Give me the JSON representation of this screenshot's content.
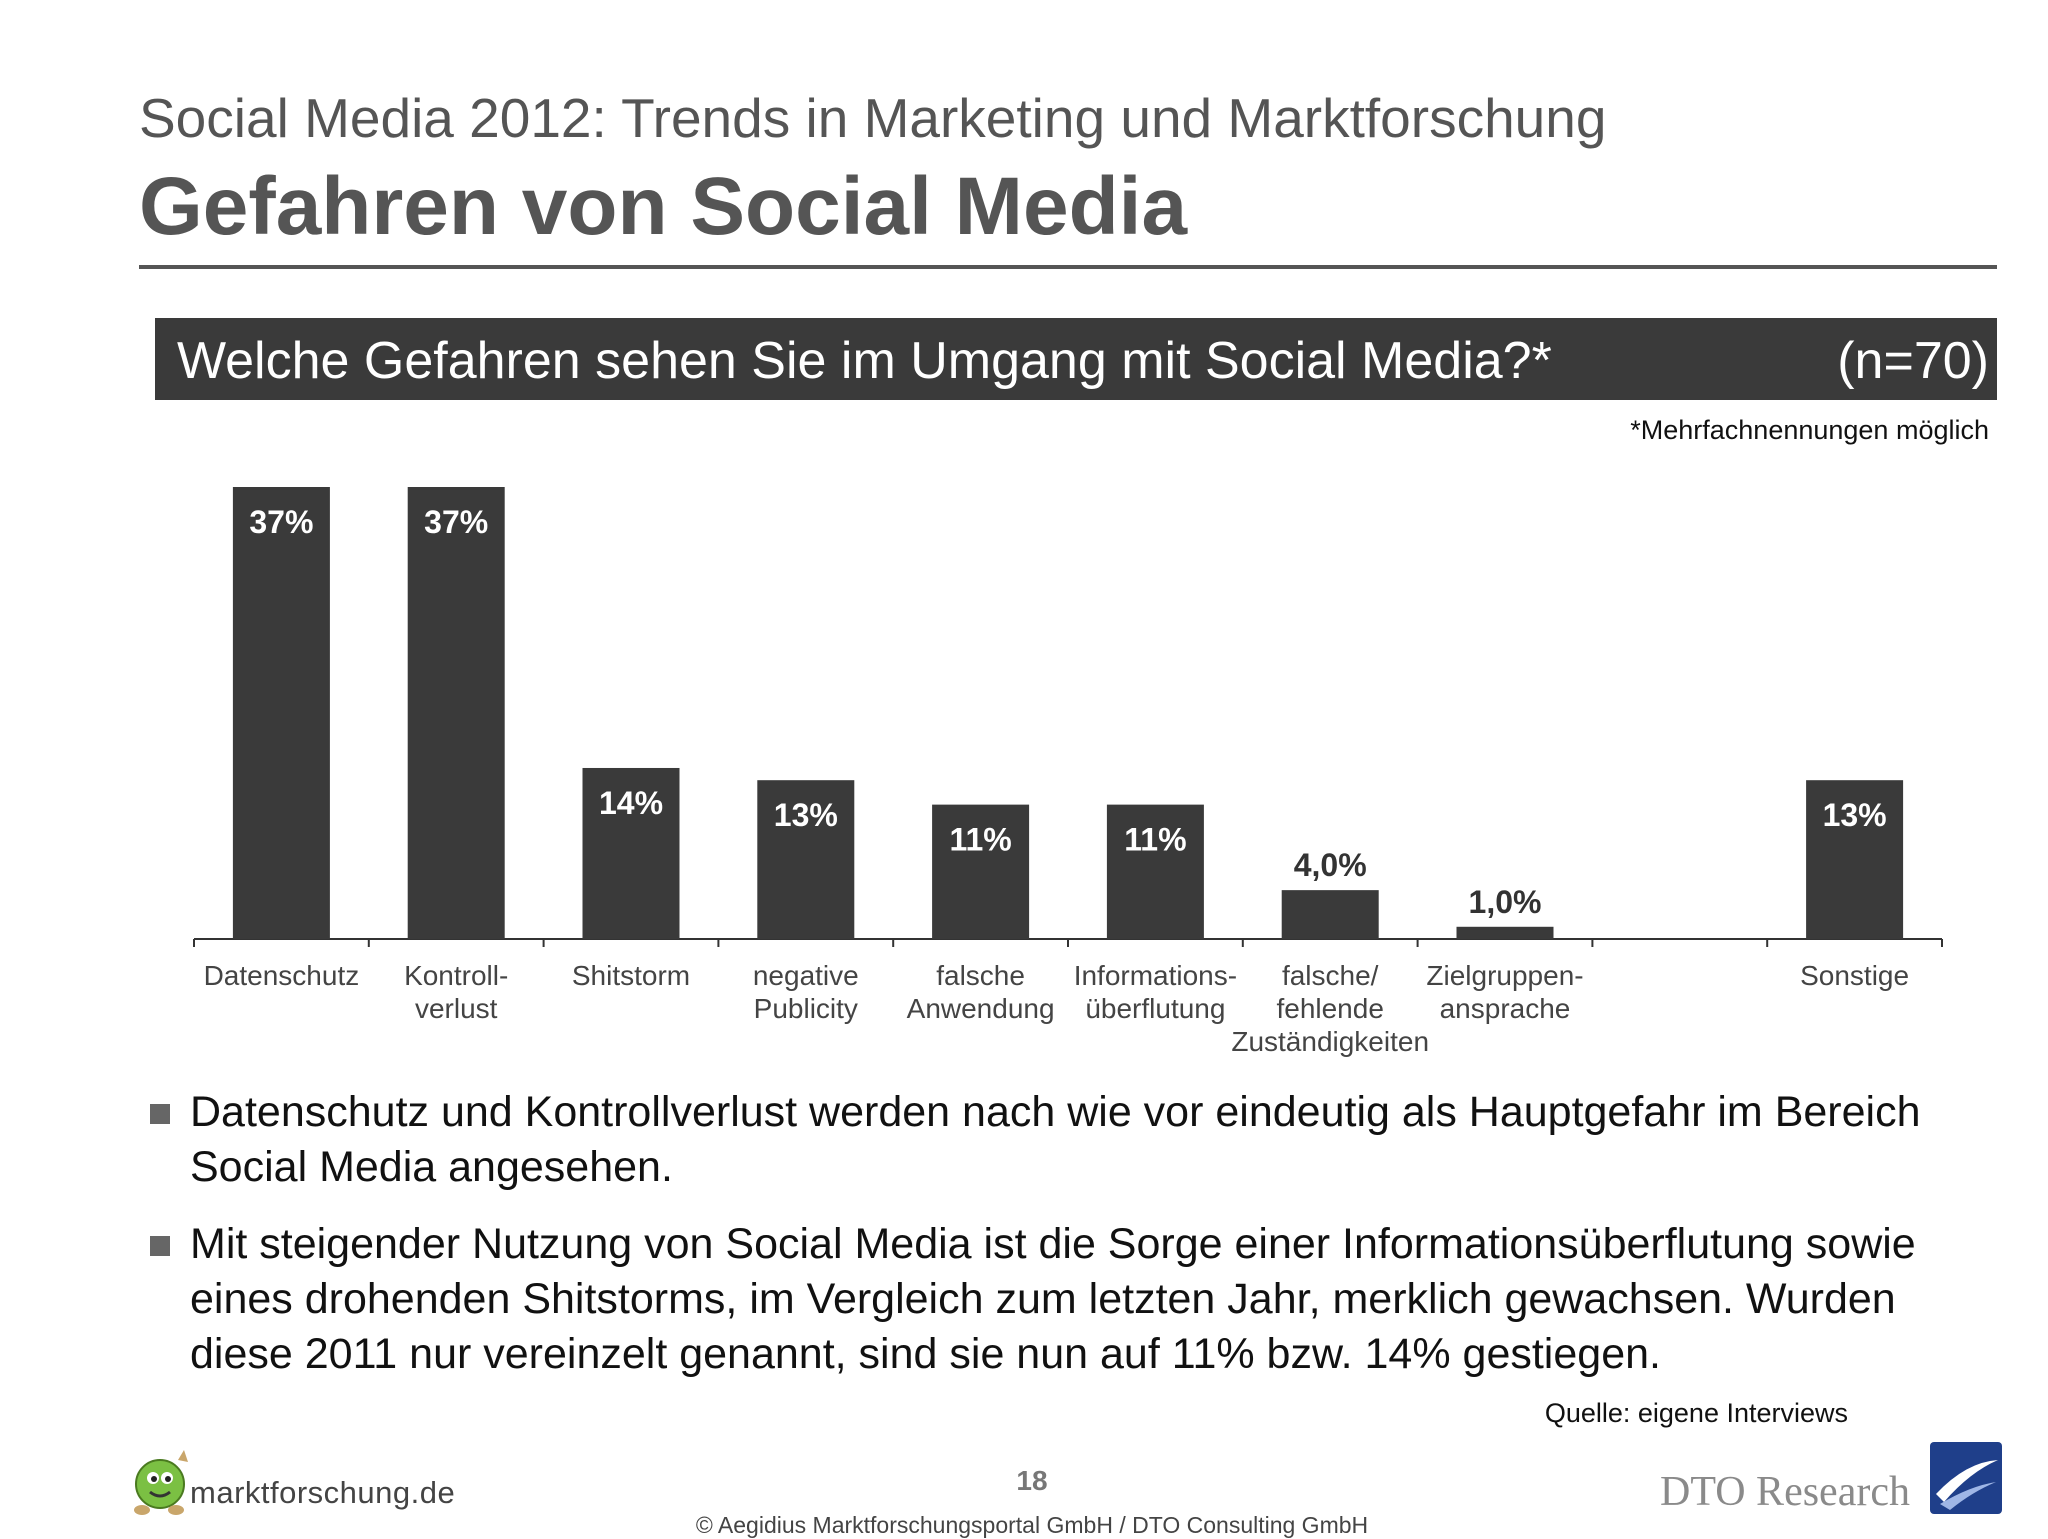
{
  "header": {
    "subtitle": "Social Media 2012: Trends in Marketing und Marktforschung",
    "title": "Gefahren von Social Media"
  },
  "question": {
    "text": "Welche Gefahren sehen Sie im Umgang mit Social Media?*",
    "n_label": "(n=70)",
    "note": "*Mehrfachnennungen möglich"
  },
  "chart_data": {
    "type": "bar",
    "categories": [
      [
        "Datenschutz"
      ],
      [
        "Kontroll-",
        "verlust"
      ],
      [
        "Shitstorm"
      ],
      [
        "negative",
        "Publicity"
      ],
      [
        "falsche",
        "Anwendung"
      ],
      [
        "Informations-",
        "überflutung"
      ],
      [
        "falsche/",
        "fehlende",
        "Zuständigkeiten"
      ],
      [
        "Zielgruppen-",
        "ansprache"
      ],
      [],
      [
        "Sonstige"
      ]
    ],
    "values": [
      37,
      37,
      14,
      13,
      11,
      11,
      4.0,
      1.0,
      null,
      13
    ],
    "value_labels": [
      "37%",
      "37%",
      "14%",
      "13%",
      "11%",
      "11%",
      "4,0%",
      "1,0%",
      "",
      "13%"
    ],
    "ylim": [
      0,
      37
    ],
    "bar_color": "#3a3a3a",
    "grid": false
  },
  "bullets": [
    "Datenschutz und Kontrollverlust werden nach wie vor eindeutig als Hauptgefahr im Bereich Social Media angesehen.",
    "Mit steigender Nutzung von Social Media ist die Sorge einer Informationsüberflutung sowie eines drohenden Shitstorms, im Vergleich zum letzten Jahr, merklich gewachsen. Wurden diese 2011 nur vereinzelt genannt, sind sie nun auf 11% bzw. 14% gestiegen."
  ],
  "footer": {
    "source": "Quelle: eigene Interviews",
    "page_number": "18",
    "copyright": "© Aegidius Marktforschungsportal GmbH / DTO Consulting GmbH",
    "logo_left": "marktforschung.de",
    "logo_right": "DTO Research"
  }
}
